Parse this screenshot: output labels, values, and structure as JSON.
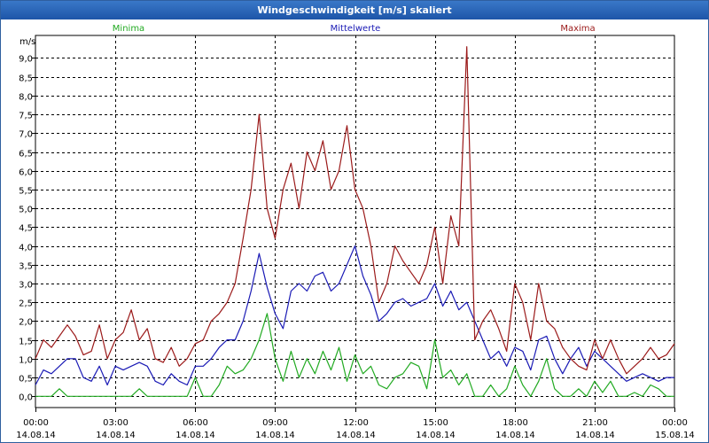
{
  "chart_data": {
    "type": "line",
    "title": "Windgeschwindigkeit [m/s] skaliert",
    "ylabel": "m/s",
    "ylim": [
      -0.3,
      9.6
    ],
    "y_ticks": [
      "0,0",
      "0,5",
      "1,0",
      "1,5",
      "2,0",
      "2,5",
      "3,0",
      "3,5",
      "4,0",
      "4,5",
      "5,0",
      "5,5",
      "6,0",
      "6,5",
      "7,0",
      "7,5",
      "8,0",
      "8,5",
      "9,0"
    ],
    "y_tick_values": [
      0,
      0.5,
      1,
      1.5,
      2,
      2.5,
      3,
      3.5,
      4,
      4.5,
      5,
      5.5,
      6,
      6.5,
      7,
      7.5,
      8,
      8.5,
      9
    ],
    "x_ticks": [
      {
        "time": "00:00",
        "date": "14.08.14",
        "hour": 0
      },
      {
        "time": "03:00",
        "date": "14.08.14",
        "hour": 3
      },
      {
        "time": "06:00",
        "date": "14.08.14",
        "hour": 6
      },
      {
        "time": "09:00",
        "date": "14.08.14",
        "hour": 9
      },
      {
        "time": "12:00",
        "date": "14.08.14",
        "hour": 12
      },
      {
        "time": "15:00",
        "date": "14.08.14",
        "hour": 15
      },
      {
        "time": "18:00",
        "date": "14.08.14",
        "hour": 18
      },
      {
        "time": "21:00",
        "date": "14.08.14",
        "hour": 21
      },
      {
        "time": "00:00",
        "date": "15.08.14",
        "hour": 24
      }
    ],
    "xlim": [
      0,
      24
    ],
    "grid": true,
    "series": [
      {
        "name": "Minima",
        "color": "#22aa22",
        "x": [
          0,
          0.3,
          0.6,
          0.9,
          1.2,
          1.5,
          1.8,
          2.1,
          2.4,
          2.7,
          3.0,
          3.3,
          3.6,
          3.9,
          4.2,
          4.5,
          4.8,
          5.1,
          5.4,
          5.7,
          6.0,
          6.3,
          6.6,
          6.9,
          7.2,
          7.5,
          7.8,
          8.1,
          8.4,
          8.7,
          9.0,
          9.3,
          9.6,
          9.9,
          10.2,
          10.5,
          10.8,
          11.1,
          11.4,
          11.7,
          12.0,
          12.3,
          12.6,
          12.9,
          13.2,
          13.5,
          13.8,
          14.1,
          14.4,
          14.7,
          15.0,
          15.3,
          15.6,
          15.9,
          16.2,
          16.5,
          16.8,
          17.1,
          17.4,
          17.7,
          18.0,
          18.3,
          18.6,
          18.9,
          19.2,
          19.5,
          19.8,
          20.1,
          20.4,
          20.7,
          21.0,
          21.3,
          21.6,
          21.9,
          22.2,
          22.5,
          22.8,
          23.1,
          23.4,
          23.7,
          24.0
        ],
        "values": [
          0,
          0,
          0,
          0.2,
          0,
          0,
          0,
          0,
          0,
          0,
          0,
          0,
          0,
          0.2,
          0,
          0,
          0,
          0,
          0,
          0,
          0.5,
          0,
          0,
          0.3,
          0.8,
          0.6,
          0.7,
          1.0,
          1.5,
          2.2,
          1.0,
          0.4,
          1.2,
          0.5,
          1.0,
          0.6,
          1.2,
          0.7,
          1.3,
          0.4,
          1.1,
          0.6,
          0.8,
          0.3,
          0.2,
          0.5,
          0.6,
          0.9,
          0.8,
          0.2,
          1.5,
          0.5,
          0.7,
          0.3,
          0.6,
          0,
          0,
          0.3,
          0,
          0.2,
          0.8,
          0.3,
          0,
          0.4,
          1.0,
          0.2,
          0,
          0,
          0.2,
          0,
          0.4,
          0.1,
          0.4,
          0,
          0,
          0.1,
          0,
          0.3,
          0.2,
          0,
          0
        ]
      },
      {
        "name": "Mittelwerte",
        "color": "#1a1ab5",
        "x": [
          0,
          0.3,
          0.6,
          0.9,
          1.2,
          1.5,
          1.8,
          2.1,
          2.4,
          2.7,
          3.0,
          3.3,
          3.6,
          3.9,
          4.2,
          4.5,
          4.8,
          5.1,
          5.4,
          5.7,
          6.0,
          6.3,
          6.6,
          6.9,
          7.2,
          7.5,
          7.8,
          8.1,
          8.4,
          8.7,
          9.0,
          9.3,
          9.6,
          9.9,
          10.2,
          10.5,
          10.8,
          11.1,
          11.4,
          11.7,
          12.0,
          12.3,
          12.6,
          12.9,
          13.2,
          13.5,
          13.8,
          14.1,
          14.4,
          14.7,
          15.0,
          15.3,
          15.6,
          15.9,
          16.2,
          16.5,
          16.8,
          17.1,
          17.4,
          17.7,
          18.0,
          18.3,
          18.6,
          18.9,
          19.2,
          19.5,
          19.8,
          20.1,
          20.4,
          20.7,
          21.0,
          21.3,
          21.6,
          21.9,
          22.2,
          22.5,
          22.8,
          23.1,
          23.4,
          23.7,
          24.0
        ],
        "values": [
          0.3,
          0.7,
          0.6,
          0.8,
          1.0,
          1.0,
          0.5,
          0.4,
          0.8,
          0.3,
          0.8,
          0.7,
          0.8,
          0.9,
          0.8,
          0.4,
          0.3,
          0.6,
          0.4,
          0.3,
          0.8,
          0.8,
          1.0,
          1.3,
          1.5,
          1.5,
          2.0,
          2.8,
          3.8,
          2.9,
          2.2,
          1.8,
          2.8,
          3.0,
          2.8,
          3.2,
          3.3,
          2.8,
          3.0,
          3.5,
          4.0,
          3.2,
          2.7,
          2.0,
          2.2,
          2.5,
          2.6,
          2.4,
          2.5,
          2.6,
          3.0,
          2.4,
          2.8,
          2.3,
          2.5,
          2.0,
          1.5,
          1.0,
          1.2,
          0.8,
          1.3,
          1.2,
          0.7,
          1.5,
          1.6,
          1.0,
          0.6,
          1.0,
          1.3,
          0.8,
          1.2,
          1.0,
          0.8,
          0.6,
          0.4,
          0.5,
          0.6,
          0.5,
          0.4,
          0.5,
          0.5
        ]
      },
      {
        "name": "Maxima",
        "color": "#9b1a1a",
        "x": [
          0,
          0.3,
          0.6,
          0.9,
          1.2,
          1.5,
          1.8,
          2.1,
          2.4,
          2.7,
          3.0,
          3.3,
          3.6,
          3.9,
          4.2,
          4.5,
          4.8,
          5.1,
          5.4,
          5.7,
          6.0,
          6.3,
          6.6,
          6.9,
          7.2,
          7.5,
          7.8,
          8.1,
          8.4,
          8.7,
          9.0,
          9.3,
          9.6,
          9.9,
          10.2,
          10.5,
          10.8,
          11.1,
          11.4,
          11.7,
          12.0,
          12.3,
          12.6,
          12.9,
          13.2,
          13.5,
          13.8,
          14.1,
          14.4,
          14.7,
          15.0,
          15.3,
          15.6,
          15.9,
          16.2,
          16.5,
          16.8,
          17.1,
          17.4,
          17.7,
          18.0,
          18.3,
          18.6,
          18.9,
          19.2,
          19.5,
          19.8,
          20.1,
          20.4,
          20.7,
          21.0,
          21.3,
          21.6,
          21.9,
          22.2,
          22.5,
          22.8,
          23.1,
          23.4,
          23.7,
          24.0
        ],
        "values": [
          1.0,
          1.5,
          1.3,
          1.6,
          1.9,
          1.6,
          1.1,
          1.2,
          1.9,
          1.0,
          1.5,
          1.7,
          2.3,
          1.5,
          1.8,
          1.0,
          0.9,
          1.3,
          0.8,
          1.0,
          1.4,
          1.5,
          2.0,
          2.2,
          2.5,
          3.0,
          4.2,
          5.5,
          7.5,
          5.0,
          4.2,
          5.5,
          6.2,
          5.0,
          6.5,
          6.0,
          6.8,
          5.5,
          6.0,
          7.2,
          5.5,
          5.0,
          4.0,
          2.5,
          3.0,
          4.0,
          3.6,
          3.3,
          3.0,
          3.5,
          4.5,
          3.0,
          4.8,
          4.0,
          9.3,
          1.5,
          2.0,
          2.3,
          1.8,
          1.2,
          3.0,
          2.5,
          1.5,
          3.0,
          2.0,
          1.8,
          1.3,
          1.0,
          0.8,
          0.7,
          1.5,
          1.0,
          1.5,
          1.0,
          0.6,
          0.8,
          1.0,
          1.3,
          1.0,
          1.1,
          1.4
        ]
      }
    ]
  }
}
